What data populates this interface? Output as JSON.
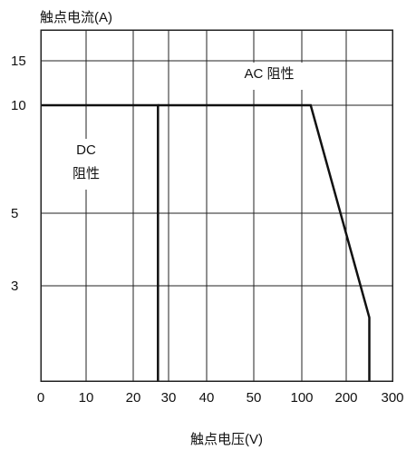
{
  "chart_data": {
    "type": "line",
    "title": "",
    "ylabel": "触点电流(A)",
    "xlabel": "触点电压(V)",
    "x_ticks": [
      0,
      10,
      20,
      30,
      40,
      50,
      100,
      200,
      300
    ],
    "y_ticks": [
      3,
      5,
      10,
      15
    ],
    "xlim": [
      0,
      300
    ],
    "ylim": [
      0,
      20
    ],
    "grid": true,
    "series": [
      {
        "name": "DC 阻性",
        "label_lines": [
          "DC",
          "阻性"
        ],
        "points": [
          [
            0,
            10
          ],
          [
            27,
            10
          ],
          [
            27,
            0
          ]
        ]
      },
      {
        "name": "AC 阻性",
        "label_lines": [
          "AC 阻性"
        ],
        "points": [
          [
            27,
            10
          ],
          [
            120,
            10
          ],
          [
            250,
            2
          ],
          [
            250,
            0
          ]
        ]
      }
    ]
  }
}
